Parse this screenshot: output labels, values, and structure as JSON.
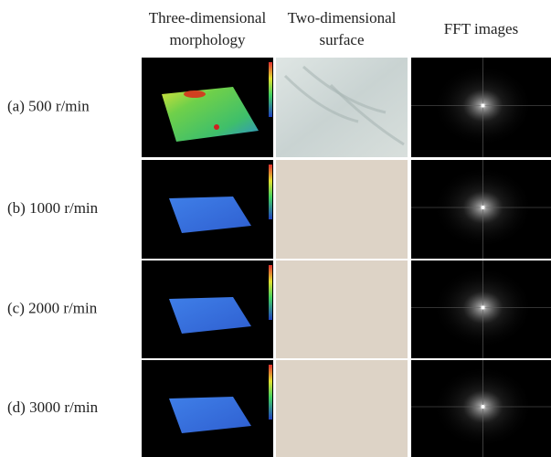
{
  "header": {
    "columns": [
      {
        "lines": [
          "Three-dimensional",
          "morphology"
        ]
      },
      {
        "lines": [
          "Two-dimensional",
          "surface"
        ]
      },
      {
        "lines": [
          "FFT images"
        ]
      }
    ]
  },
  "rows": [
    {
      "label": "(a) 500 r/min"
    },
    {
      "label": "(b) 1000 r/min"
    },
    {
      "label": "(c) 2000 r/min"
    },
    {
      "label": "(d) 3000 r/min"
    }
  ]
}
